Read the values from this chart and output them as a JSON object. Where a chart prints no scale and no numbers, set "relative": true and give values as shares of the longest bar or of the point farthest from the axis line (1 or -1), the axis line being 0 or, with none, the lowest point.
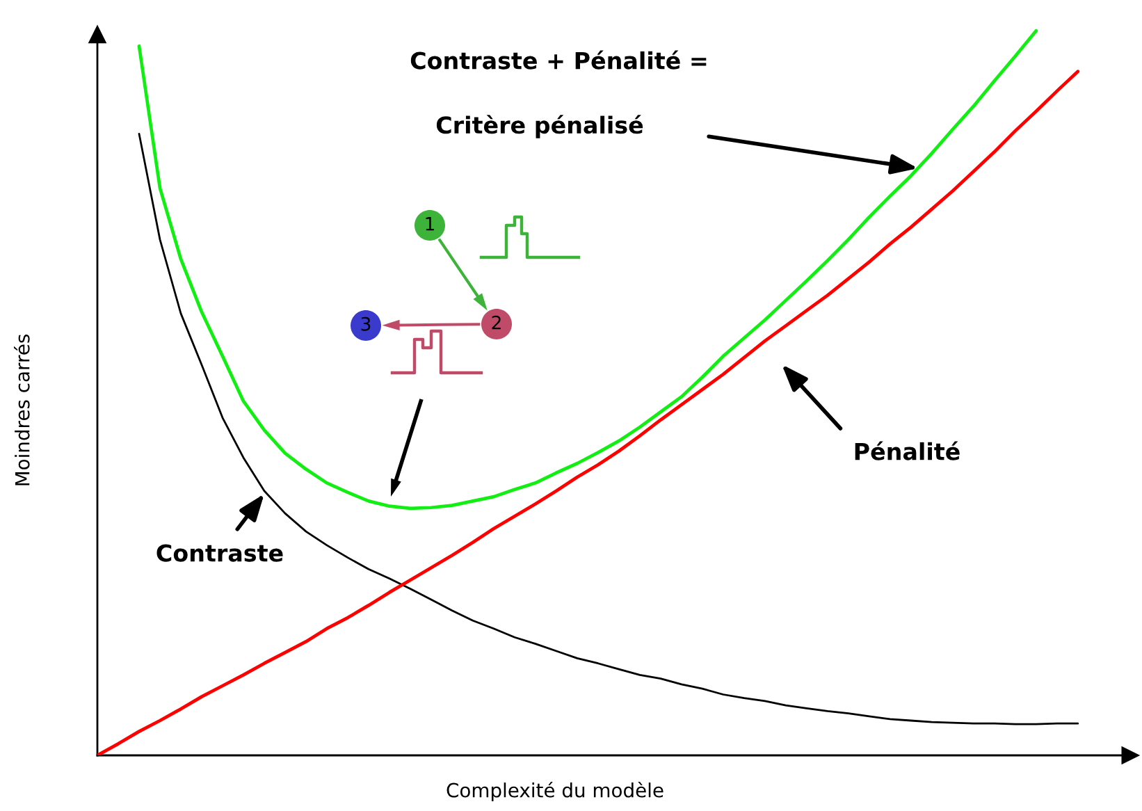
{
  "chart_data": {
    "type": "line",
    "xlabel": "Complexité du modèle",
    "ylabel": "Moindres carrés",
    "relative": true,
    "categories": [
      null,
      null,
      null,
      null,
      null,
      null,
      null,
      null,
      null,
      null,
      null,
      null,
      null,
      null,
      null,
      null,
      null,
      null,
      null,
      null,
      null,
      null,
      null,
      null,
      null,
      null,
      null,
      null,
      null,
      null,
      null,
      null,
      null,
      null,
      null,
      null,
      null,
      null,
      null,
      null,
      null,
      null,
      null,
      null,
      null,
      null,
      null,
      null
    ],
    "series": [
      {
        "color": "#000000",
        "values": [
          null,
          null,
          0.858,
          0.712,
          0.61,
          0.539,
          0.466,
          0.411,
          0.365,
          0.334,
          0.309,
          0.29,
          0.273,
          0.257,
          0.244,
          0.23,
          0.215,
          0.2,
          0.186,
          0.175,
          0.163,
          0.154,
          0.144,
          0.134,
          0.127,
          0.119,
          0.111,
          0.106,
          0.098,
          0.092,
          0.084,
          0.079,
          0.075,
          0.069,
          0.065,
          0.061,
          0.058,
          0.054,
          0.05,
          0.048,
          0.046,
          0.045,
          0.044,
          0.044,
          0.043,
          0.043,
          0.044,
          0.044
        ]
      },
      {
        "color": "#ff0000",
        "values": [
          0,
          0.016,
          0.033,
          0.048,
          0.064,
          0.081,
          0.096,
          0.111,
          0.127,
          0.142,
          0.157,
          0.175,
          0.19,
          0.207,
          0.225,
          0.242,
          0.259,
          0.276,
          0.294,
          0.313,
          0.33,
          0.347,
          0.365,
          0.384,
          0.401,
          0.42,
          0.441,
          0.463,
          0.484,
          0.505,
          0.526,
          0.549,
          0.572,
          0.593,
          0.614,
          0.635,
          0.658,
          0.681,
          0.706,
          0.729,
          0.754,
          0.779,
          0.806,
          0.833,
          0.862,
          0.889,
          0.917,
          0.944
        ]
      },
      {
        "color": "#11ee11",
        "values": [
          null,
          null,
          0.979,
          0.783,
          0.685,
          0.612,
          0.551,
          0.489,
          0.449,
          0.417,
          0.395,
          0.376,
          0.363,
          0.351,
          0.344,
          0.341,
          0.342,
          0.345,
          0.351,
          0.357,
          0.367,
          0.376,
          0.39,
          0.403,
          0.418,
          0.434,
          0.453,
          0.474,
          0.495,
          0.522,
          0.551,
          0.576,
          0.601,
          0.628,
          0.655,
          0.683,
          0.712,
          0.743,
          0.772,
          0.8,
          0.831,
          0.864,
          0.896,
          0.931,
          0.965,
          1,
          null,
          null
        ]
      }
    ],
    "annotations": [
      "Contraste + Pénalité =",
      "Critère pénalisé",
      "Pénalité",
      "Contraste",
      "1",
      "2",
      "3"
    ]
  }
}
